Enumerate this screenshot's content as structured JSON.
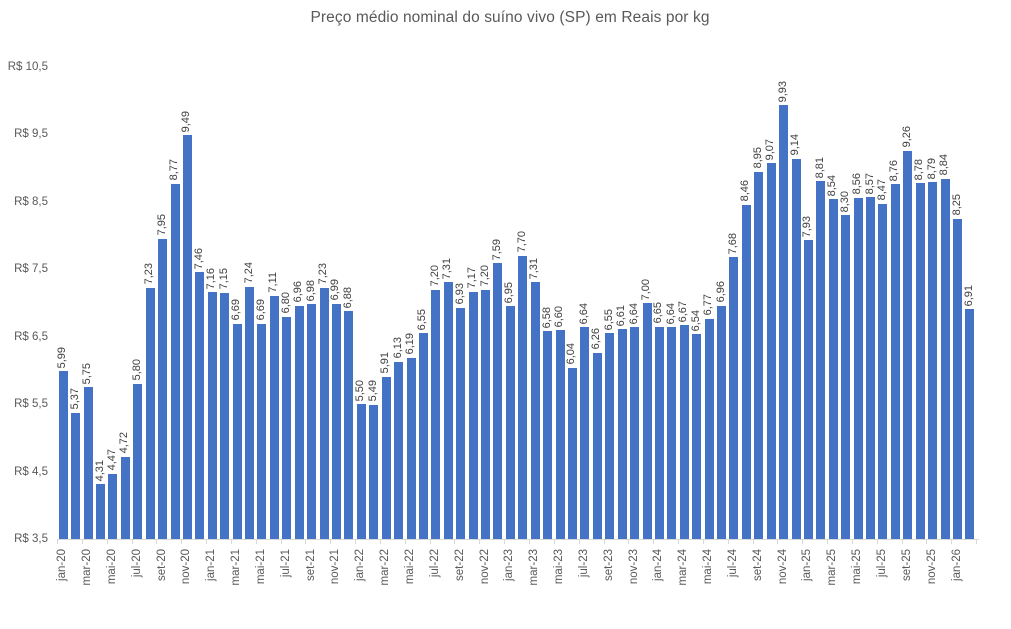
{
  "chart_data": {
    "type": "bar",
    "title": "Preço médio nominal do suíno vivo (SP) em Reais por kg",
    "xlabel": "",
    "ylabel": "",
    "ylim": [
      3.5,
      10.5
    ],
    "y_step": 1.0,
    "grid": false,
    "legend": "none",
    "bar_color": "#4472C4",
    "label_color": "#404040",
    "axis_text_color": "#595959",
    "axis_line_color": "#d9d9d9",
    "categories": [
      "jan-20",
      "fev-20",
      "mar-20",
      "abr-20",
      "mai-20",
      "jun-20",
      "jul-20",
      "ago-20",
      "set-20",
      "out-20",
      "nov-20",
      "dez-20",
      "jan-21",
      "fev-21",
      "mar-21",
      "abr-21",
      "mai-21",
      "jun-21",
      "jul-21",
      "ago-21",
      "set-21",
      "out-21",
      "nov-21",
      "dez-21",
      "jan-22",
      "fev-22",
      "mar-22",
      "abr-22",
      "mai-22",
      "jun-22",
      "jul-22",
      "ago-22",
      "set-22",
      "out-22",
      "nov-22",
      "dez-22",
      "jan-23",
      "fev-23",
      "mar-23",
      "abr-23",
      "mai-23",
      "jun-23",
      "jul-23",
      "ago-23",
      "set-23",
      "out-23",
      "nov-23",
      "dez-23",
      "jan-24",
      "fev-24",
      "mar-24",
      "abr-24",
      "mai-24",
      "jun-24",
      "jul-24",
      "ago-24",
      "set-24",
      "out-24",
      "nov-24",
      "dez-24",
      "jan-25",
      "fev-25",
      "mar-25",
      "abr-25",
      "mai-25",
      "jun-25",
      "jul-25",
      "ago-25",
      "set-25",
      "out-25",
      "nov-25",
      "dez-25",
      "jan-26",
      "fev-26"
    ],
    "values": [
      5.99,
      5.37,
      5.75,
      4.31,
      4.47,
      4.72,
      5.8,
      7.23,
      7.95,
      8.77,
      9.49,
      7.46,
      7.16,
      7.15,
      6.69,
      7.24,
      6.69,
      7.11,
      6.8,
      6.96,
      6.98,
      7.23,
      6.99,
      6.88,
      5.5,
      5.49,
      5.91,
      6.13,
      6.19,
      6.55,
      7.2,
      7.31,
      6.93,
      7.17,
      7.2,
      7.59,
      6.95,
      7.7,
      7.31,
      6.58,
      6.6,
      6.04,
      6.64,
      6.26,
      6.55,
      6.61,
      6.64,
      7.0,
      6.65,
      6.64,
      6.67,
      6.54,
      6.77,
      6.96,
      7.68,
      8.46,
      8.95,
      9.07,
      9.93,
      9.14,
      7.93,
      8.81,
      8.54,
      8.3,
      8.56,
      8.57,
      8.47,
      8.76,
      9.26,
      8.78,
      8.79,
      8.84,
      8.25,
      6.91
    ],
    "value_labels": [
      "5,99",
      "5,37",
      "5,75",
      "4,31",
      "4,47",
      "4,72",
      "5,80",
      "7,23",
      "7,95",
      "8,77",
      "9,49",
      "7,46",
      "7,16",
      "7,15",
      "6,69",
      "7,24",
      "6,69",
      "7,11",
      "6,80",
      "6,96",
      "6,98",
      "7,23",
      "6,99",
      "6,88",
      "5,50",
      "5,49",
      "5,91",
      "6,13",
      "6,19",
      "6,55",
      "7,20",
      "7,31",
      "6,93",
      "7,17",
      "7,20",
      "7,59",
      "6,95",
      "7,70",
      "7,31",
      "6,58",
      "6,60",
      "6,04",
      "6,64",
      "6,26",
      "6,55",
      "6,61",
      "6,64",
      "7,00",
      "6,65",
      "6,64",
      "6,67",
      "6,54",
      "6,77",
      "6,96",
      "7,68",
      "8,46",
      "8,95",
      "9,07",
      "9,93",
      "9,14",
      "7,93",
      "8,81",
      "8,54",
      "8,30",
      "8,56",
      "8,57",
      "8,47",
      "8,76",
      "9,26",
      "8,78",
      "8,79",
      "8,84",
      "8,25",
      "6,91"
    ],
    "x_tick_labels": [
      "jan-20",
      "mar-20",
      "mai-20",
      "jul-20",
      "set-20",
      "nov-20",
      "jan-21",
      "mar-21",
      "mai-21",
      "jul-21",
      "set-21",
      "nov-21",
      "jan-22",
      "mar-22",
      "mai-22",
      "jul-22",
      "set-22",
      "nov-22",
      "jan-23",
      "mar-23",
      "mai-23",
      "jul-23",
      "set-23",
      "nov-23",
      "jan-24",
      "mar-24",
      "mai-24",
      "jul-24",
      "set-24",
      "nov-24",
      "jan-25",
      "mar-25",
      "mai-25",
      "jul-25",
      "set-25",
      "nov-25",
      "jan-26"
    ],
    "x_tick_interval": 2,
    "y_tick_labels": [
      "R$ 10,5",
      "R$ 9,5",
      "R$ 8,5",
      "R$ 7,5",
      "R$ 6,5",
      "R$ 5,5",
      "R$ 4,5",
      "R$ 3,5"
    ]
  }
}
